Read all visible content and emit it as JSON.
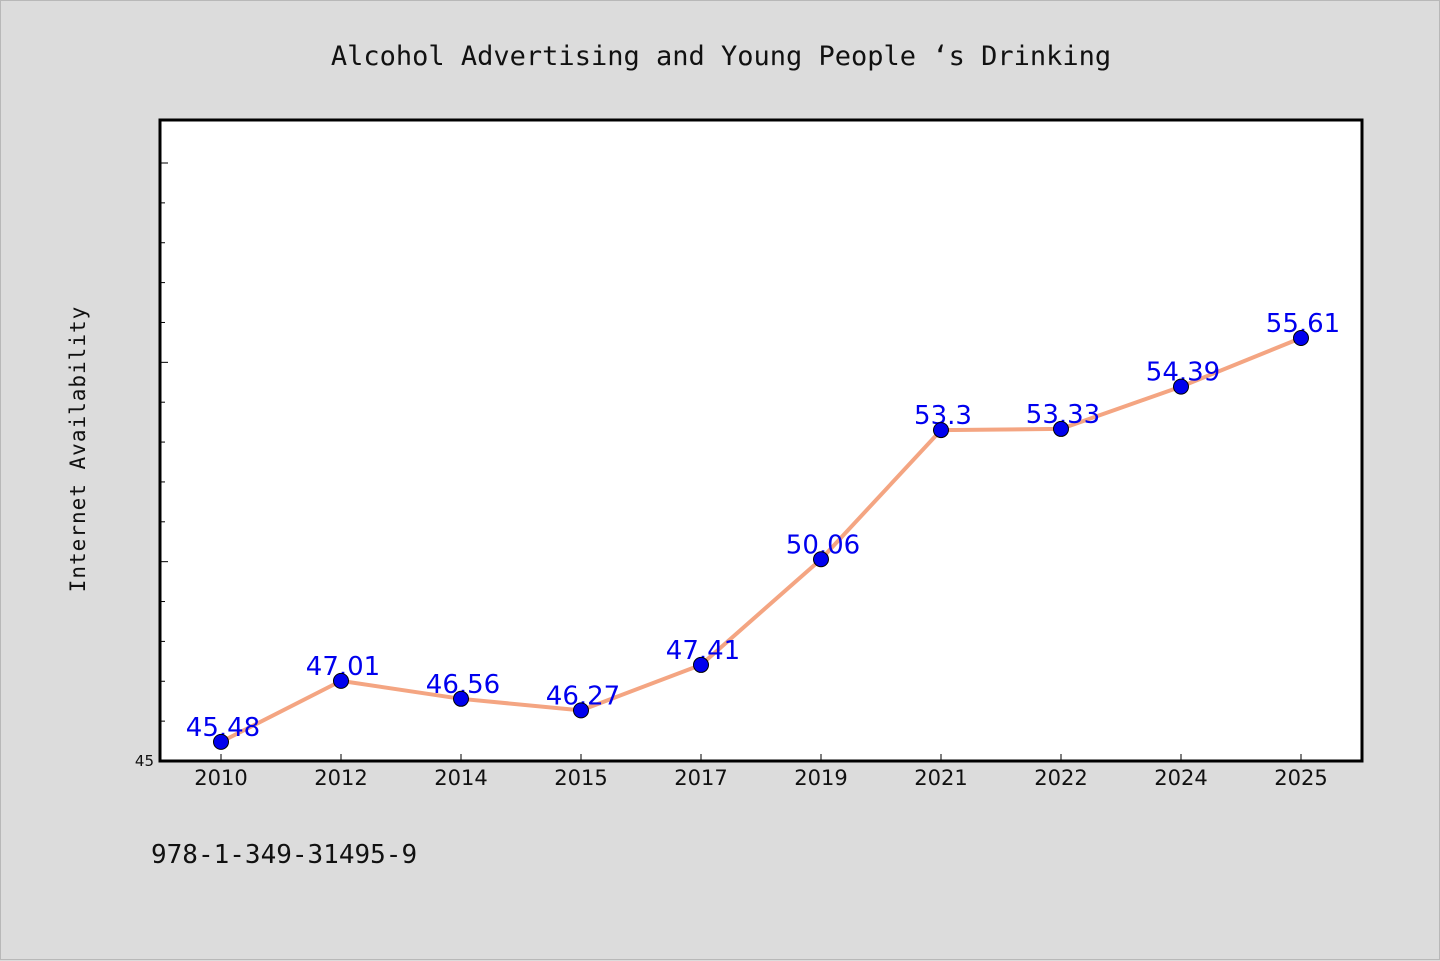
{
  "chart_data": {
    "type": "line",
    "title": "Alcohol Advertising and Young People ‘s Drinking",
    "ylabel": "Internet Availability",
    "xlabel": "",
    "categories": [
      "2010",
      "2012",
      "2014",
      "2015",
      "2017",
      "2019",
      "2021",
      "2022",
      "2024",
      "2025"
    ],
    "series": [
      {
        "values": [
          45.48,
          47.01,
          46.56,
          46.27,
          47.41,
          50.06,
          53.3,
          53.33,
          54.39,
          55.61
        ],
        "data_labels": [
          "45.48",
          "47.01",
          "46.56",
          "46.27",
          "47.41",
          "50.06",
          "53.3",
          "53.33",
          "54.39",
          "55.61"
        ],
        "line_color": "#f4a582",
        "marker_color": "#0000ee"
      }
    ],
    "ylim": [
      45,
      60
    ],
    "yticks_labeled": [
      "45"
    ],
    "grid": false,
    "legend": "none"
  },
  "footer": {
    "isbn": "978-1-349-31495-9"
  },
  "colors": {
    "background": "#dcdcdc",
    "plot_background": "#ffffff",
    "axis": "#000000"
  }
}
